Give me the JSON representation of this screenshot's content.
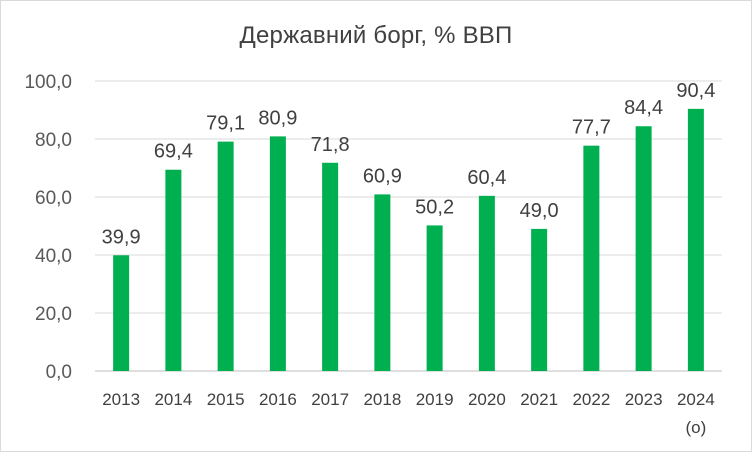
{
  "chart_data": {
    "type": "bar",
    "title": "Державний борг, % ВВП",
    "categories": [
      "2013",
      "2014",
      "2015",
      "2016",
      "2017",
      "2018",
      "2019",
      "2020",
      "2021",
      "2022",
      "2023",
      "2024"
    ],
    "category_sublabels": [
      "",
      "",
      "",
      "",
      "",
      "",
      "",
      "",
      "",
      "",
      "",
      "(о)"
    ],
    "values": [
      39.9,
      69.4,
      79.1,
      80.9,
      71.8,
      60.9,
      50.2,
      60.4,
      49.0,
      77.7,
      84.4,
      90.4
    ],
    "value_labels": [
      "39,9",
      "69,4",
      "79,1",
      "80,9",
      "71,8",
      "60,9",
      "50,2",
      "60,4",
      "49,0",
      "77,7",
      "84,4",
      "90,4"
    ],
    "y_ticks": [
      0,
      20,
      40,
      60,
      80,
      100
    ],
    "y_tick_labels": [
      "0,0",
      "20,0",
      "40,0",
      "60,0",
      "80,0",
      "100,0"
    ],
    "ylim": [
      0,
      100
    ],
    "xlabel": "",
    "ylabel": "",
    "grid": true,
    "legend": "none",
    "colors": {
      "bar": "#00b050",
      "grid": "#d9d9d9",
      "text": "#404040"
    }
  }
}
